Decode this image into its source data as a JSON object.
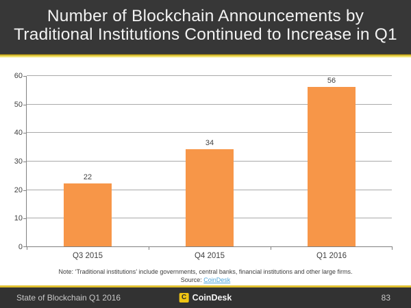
{
  "title": {
    "line1": "Number of Blockchain Announcements by",
    "line2": "Traditional Institutions Continued to Increase in Q1"
  },
  "chart_data": {
    "type": "bar",
    "categories": [
      "Q3 2015",
      "Q4 2015",
      "Q1 2016"
    ],
    "values": [
      22,
      34,
      56
    ],
    "title": "Number of Blockchain Announcements by Traditional Institutions Continued to Increase in Q1",
    "xlabel": "",
    "ylabel": "",
    "ylim": [
      0,
      60
    ],
    "ytick_step": 10,
    "grid": true,
    "legend": "none",
    "bar_color": "#F79648"
  },
  "note": {
    "text": "Note: ‘Traditional institutions’ include governments, central banks, financial institutions and other large firms.",
    "source_label": "Source: ",
    "source_link": "CoinDesk"
  },
  "footer": {
    "left": "State of Blockchain Q1 2016",
    "logo_glyph": "C",
    "brand": "CoinDesk",
    "page": "83"
  },
  "colors": {
    "bar_orange": "#F79648",
    "accent_gold": "#E0C02F",
    "band_dark": "#373737",
    "link_blue": "#4AA3D8",
    "gridline_gray": "#A8A8A8"
  }
}
